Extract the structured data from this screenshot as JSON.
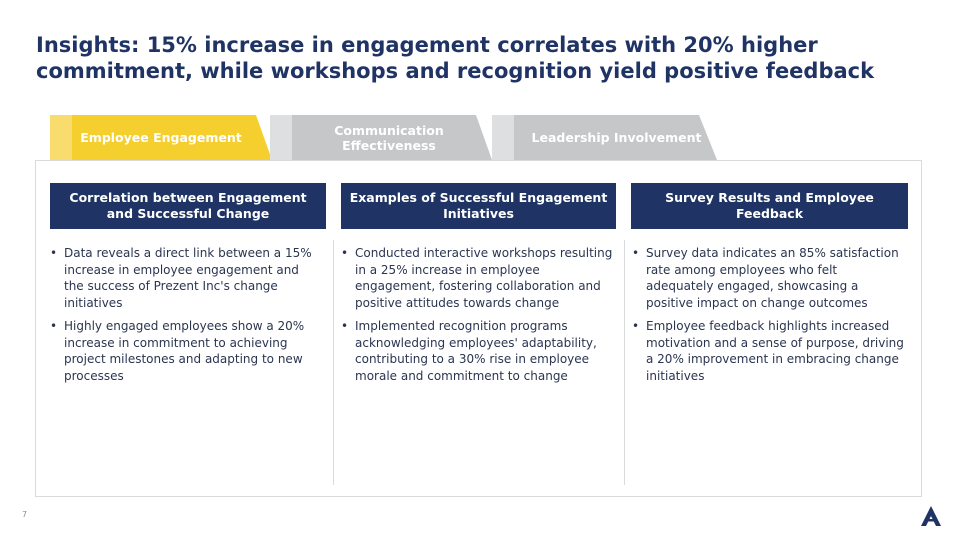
{
  "slide": {
    "title": "Insights: 15% increase in engagement correlates with 20% higher commitment, while workshops and recognition yield positive feedback",
    "page_number": "7"
  },
  "tabs": [
    {
      "label": "Employee Engagement",
      "active": true,
      "color": "#f5cf2e",
      "accent": "#f8dd6e"
    },
    {
      "label": "Communication Effectiveness",
      "active": false,
      "color": "#c6c7c9",
      "accent": "#dedfe1"
    },
    {
      "label": "Leadership Involvement",
      "active": false,
      "color": "#c6c7c9",
      "accent": "#dedfe1"
    }
  ],
  "columns": [
    {
      "heading": "Correlation between Engagement and Successful Change",
      "bullets": [
        "Data reveals a direct link between a 15% increase in employee engagement and the success of Prezent Inc's change initiatives",
        "Highly engaged employees show a 20% increase in commitment to achieving project milestones and adapting to new processes"
      ]
    },
    {
      "heading": "Examples of Successful Engagement Initiatives",
      "bullets": [
        "Conducted interactive workshops resulting in a 25% increase in employee engagement, fostering collaboration and positive attitudes towards change",
        "Implemented recognition programs acknowledging employees' adaptability, contributing to a 30% rise in employee morale and commitment to change"
      ]
    },
    {
      "heading": "Survey Results and Employee Feedback",
      "bullets": [
        "Survey data indicates an 85% satisfaction rate among employees who felt adequately engaged, showcasing a positive impact on change outcomes",
        "Employee feedback highlights increased motivation and a sense of purpose, driving a 20% improvement in embracing change initiatives"
      ]
    }
  ],
  "colors": {
    "navy": "#1f3464",
    "active_tab": "#f5cf2e",
    "inactive_tab": "#c6c7c9"
  },
  "logo": {
    "icon": "triangle-logo-icon"
  }
}
